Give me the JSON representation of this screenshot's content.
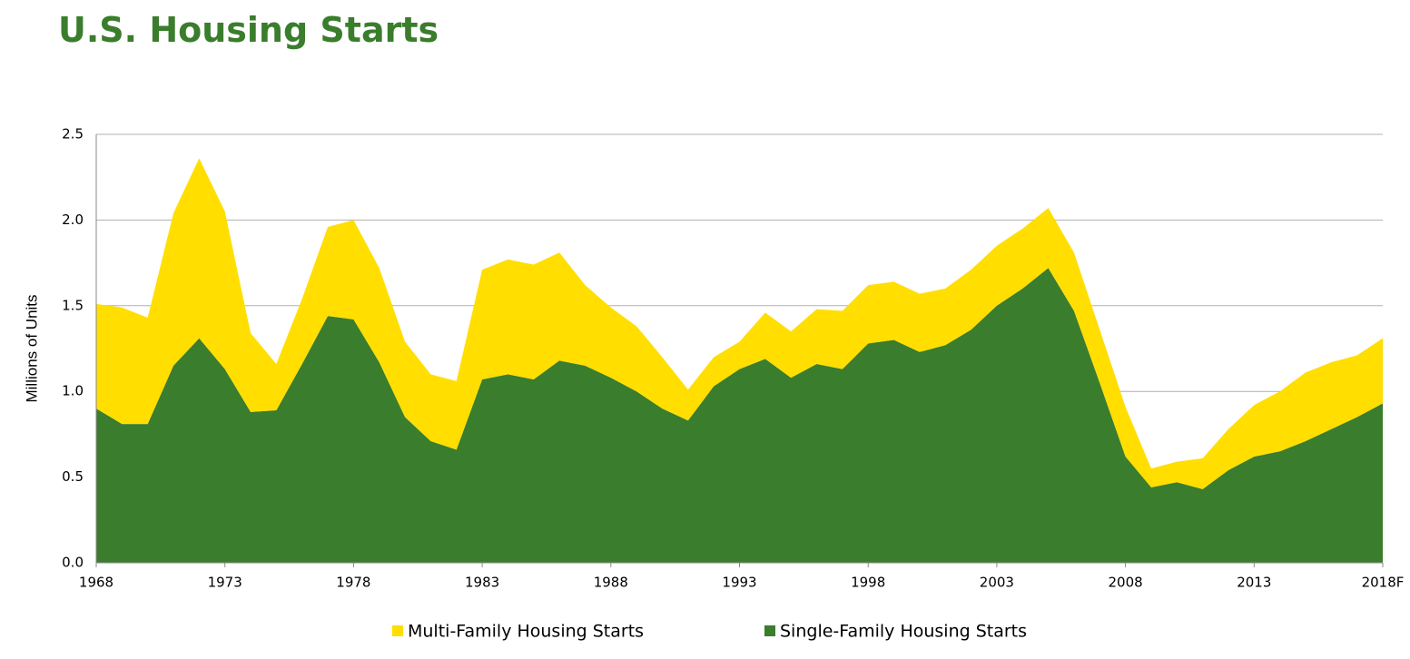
{
  "chart_data": {
    "type": "stacked-area",
    "title": "U.S. Housing Starts",
    "y_label": "Millions of Units",
    "categories": [
      "1968",
      null,
      null,
      null,
      null,
      "1973",
      null,
      null,
      null,
      null,
      "1978",
      null,
      null,
      null,
      null,
      "1983",
      null,
      null,
      null,
      null,
      "1988",
      null,
      null,
      null,
      null,
      "1993",
      null,
      null,
      null,
      null,
      "1998",
      null,
      null,
      null,
      null,
      "2003",
      null,
      null,
      null,
      null,
      "2008",
      null,
      null,
      null,
      null,
      "2013",
      null,
      null,
      null,
      null,
      "2018F"
    ],
    "series": [
      {
        "name": "Multi-Family Housing Starts",
        "color": "#ffde00",
        "values": [
          0.61,
          0.68,
          0.62,
          0.89,
          1.05,
          0.92,
          0.46,
          0.27,
          0.38,
          0.52,
          0.58,
          0.55,
          0.44,
          0.39,
          0.4,
          0.64,
          0.67,
          0.67,
          0.63,
          0.47,
          0.41,
          0.38,
          0.3,
          0.18,
          0.17,
          0.16,
          0.27,
          0.27,
          0.32,
          0.34,
          0.34,
          0.34,
          0.34,
          0.33,
          0.35,
          0.35,
          0.35,
          0.35,
          0.34,
          0.31,
          0.29,
          0.11,
          0.12,
          0.18,
          0.24,
          0.3,
          0.35,
          0.4,
          0.39,
          0.36,
          0.38
        ]
      },
      {
        "name": "Single-Family Housing Starts",
        "color": "#3a7d2c",
        "values": [
          0.9,
          0.81,
          0.81,
          1.15,
          1.31,
          1.13,
          0.88,
          0.89,
          1.16,
          1.44,
          1.42,
          1.17,
          0.85,
          0.71,
          0.66,
          1.07,
          1.1,
          1.07,
          1.18,
          1.15,
          1.08,
          1.0,
          0.9,
          0.83,
          1.03,
          1.13,
          1.19,
          1.08,
          1.16,
          1.13,
          1.28,
          1.3,
          1.23,
          1.27,
          1.36,
          1.5,
          1.6,
          1.72,
          1.47,
          1.05,
          0.62,
          0.44,
          0.47,
          0.43,
          0.54,
          0.62,
          0.65,
          0.71,
          0.78,
          0.85,
          0.93
        ]
      }
    ],
    "ylim": [
      0,
      2.5
    ],
    "yticks": [
      {
        "value": 0,
        "label": "0.0"
      },
      0.5,
      {
        "value": 1,
        "label": "1.0"
      },
      1.5,
      {
        "value": 2,
        "label": "2.0"
      },
      2.5
    ],
    "grid": true
  }
}
